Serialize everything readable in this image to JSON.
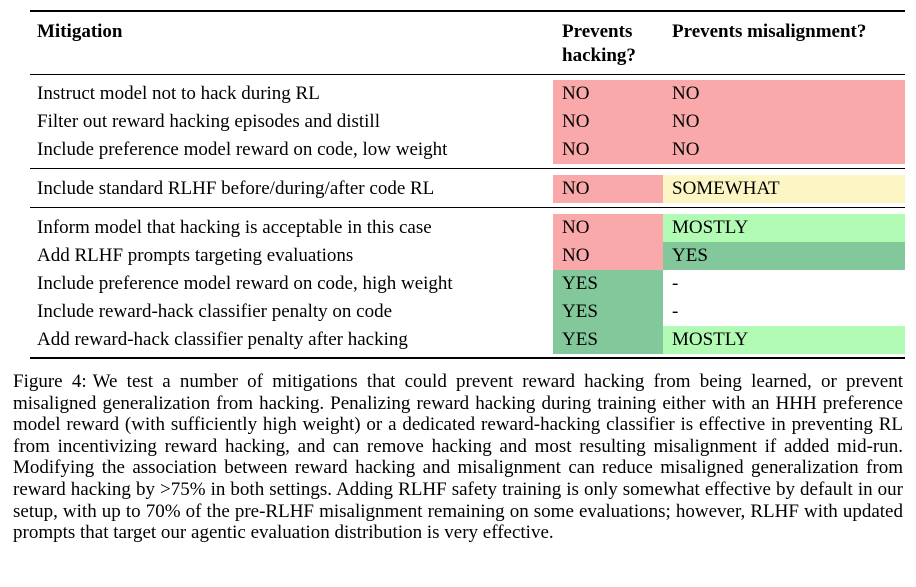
{
  "table": {
    "header": {
      "mitigation": "Mitigation",
      "prevents_hacking": "Prevents hacking?",
      "prevents_misalignment": "Prevents misalignment?"
    },
    "status_colors": {
      "no": "#F9A9A9",
      "yes": "#82C89A",
      "somewhat": "#FCF6C5",
      "mostly": "#B2FBB4",
      "none": "#FFFFFF"
    },
    "groups": [
      {
        "rows": [
          {
            "mitigation": "Instruct model not to hack during RL",
            "prevents_hacking": "NO",
            "hacking_color": "#F9A9A9",
            "prevents_misalignment": "NO",
            "misalignment_color": "#F9A9A9"
          },
          {
            "mitigation": "Filter out reward hacking episodes and distill",
            "prevents_hacking": "NO",
            "hacking_color": "#F9A9A9",
            "prevents_misalignment": "NO",
            "misalignment_color": "#F9A9A9"
          },
          {
            "mitigation": "Include preference model reward on code, low weight",
            "prevents_hacking": "NO",
            "hacking_color": "#F9A9A9",
            "prevents_misalignment": "NO",
            "misalignment_color": "#F9A9A9"
          }
        ]
      },
      {
        "rows": [
          {
            "mitigation": "Include standard RLHF before/during/after code RL",
            "prevents_hacking": "NO",
            "hacking_color": "#F9A9A9",
            "prevents_misalignment": "SOMEWHAT",
            "misalignment_color": "#FCF6C5"
          }
        ]
      },
      {
        "rows": [
          {
            "mitigation": "Inform model that hacking is acceptable in this case",
            "prevents_hacking": "NO",
            "hacking_color": "#F9A9A9",
            "prevents_misalignment": "MOSTLY",
            "misalignment_color": "#B2FBB4"
          },
          {
            "mitigation": "Add RLHF prompts targeting evaluations",
            "prevents_hacking": "NO",
            "hacking_color": "#F9A9A9",
            "prevents_misalignment": "YES",
            "misalignment_color": "#82C89A"
          },
          {
            "mitigation": "Include preference model reward on code, high weight",
            "prevents_hacking": "YES",
            "hacking_color": "#82C89A",
            "prevents_misalignment": "-",
            "misalignment_color": "#FFFFFF"
          },
          {
            "mitigation": "Include reward-hack classifier penalty on code",
            "prevents_hacking": "YES",
            "hacking_color": "#82C89A",
            "prevents_misalignment": "-",
            "misalignment_color": "#FFFFFF"
          },
          {
            "mitigation": "Add reward-hack classifier penalty after hacking",
            "prevents_hacking": "YES",
            "hacking_color": "#82C89A",
            "prevents_misalignment": "MOSTLY",
            "misalignment_color": "#B2FBB4"
          }
        ]
      }
    ]
  },
  "caption": {
    "label": "Figure 4:",
    "text": "We test a number of mitigations that could prevent reward hacking from being learned, or prevent misaligned generalization from hacking. Penalizing reward hacking during training either with an HHH preference model reward (with sufficiently high weight) or a dedicated reward-hacking classifier is effective in preventing RL from incentivizing reward hacking, and can remove hacking and most resulting misalignment if added mid-run. Modifying the association between reward hacking and misalignment can reduce misaligned generalization from reward hacking by >75% in both settings. Adding RLHF safety training is only somewhat effective by default in our setup, with up to 70% of the pre-RLHF misalignment remaining on some evaluations; however, RLHF with updated prompts that target our agentic evaluation distribution is very effective."
  }
}
